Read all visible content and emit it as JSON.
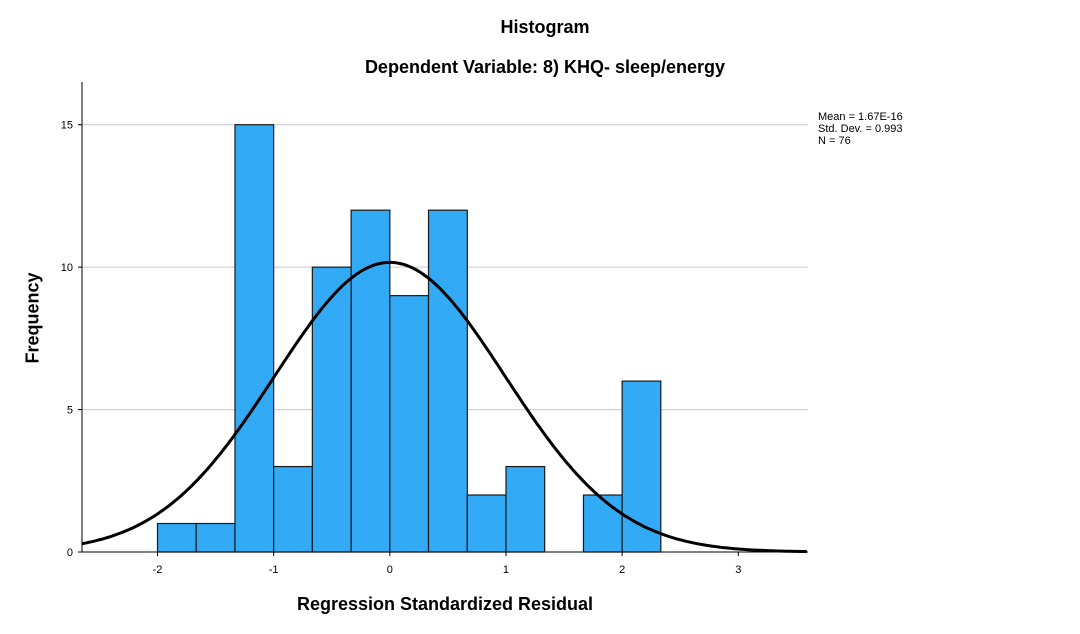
{
  "chart_data": {
    "type": "bar",
    "title": "Histogram",
    "subtitle": "Dependent Variable: 8) KHQ- sleep/energy",
    "xlabel": "Regression Standardized Residual",
    "ylabel": "Frequency",
    "xlim": [
      -2.65,
      3.6
    ],
    "ylim": [
      0,
      16.5
    ],
    "xticks": [
      -2,
      -1,
      0,
      1,
      2,
      3
    ],
    "yticks": [
      0,
      5,
      10,
      15
    ],
    "bin_edges": [
      -2.0,
      -1.667,
      -1.333,
      -1.0,
      -0.667,
      -0.333,
      0.0,
      0.333,
      0.667,
      1.0,
      1.333,
      1.667,
      2.0,
      2.333
    ],
    "values": [
      1,
      1,
      15,
      3,
      10,
      12,
      9,
      12,
      2,
      3,
      0,
      2,
      6
    ],
    "grid": true,
    "bar_color": "#33aaf5",
    "curve": {
      "type": "normal",
      "mean": 0,
      "sd": 0.993,
      "n": 76
    },
    "stats": {
      "mean_label": "Mean = 1.67E-16",
      "sd_label": "Std. Dev. = 0.993",
      "n_label": "N = 76"
    }
  }
}
